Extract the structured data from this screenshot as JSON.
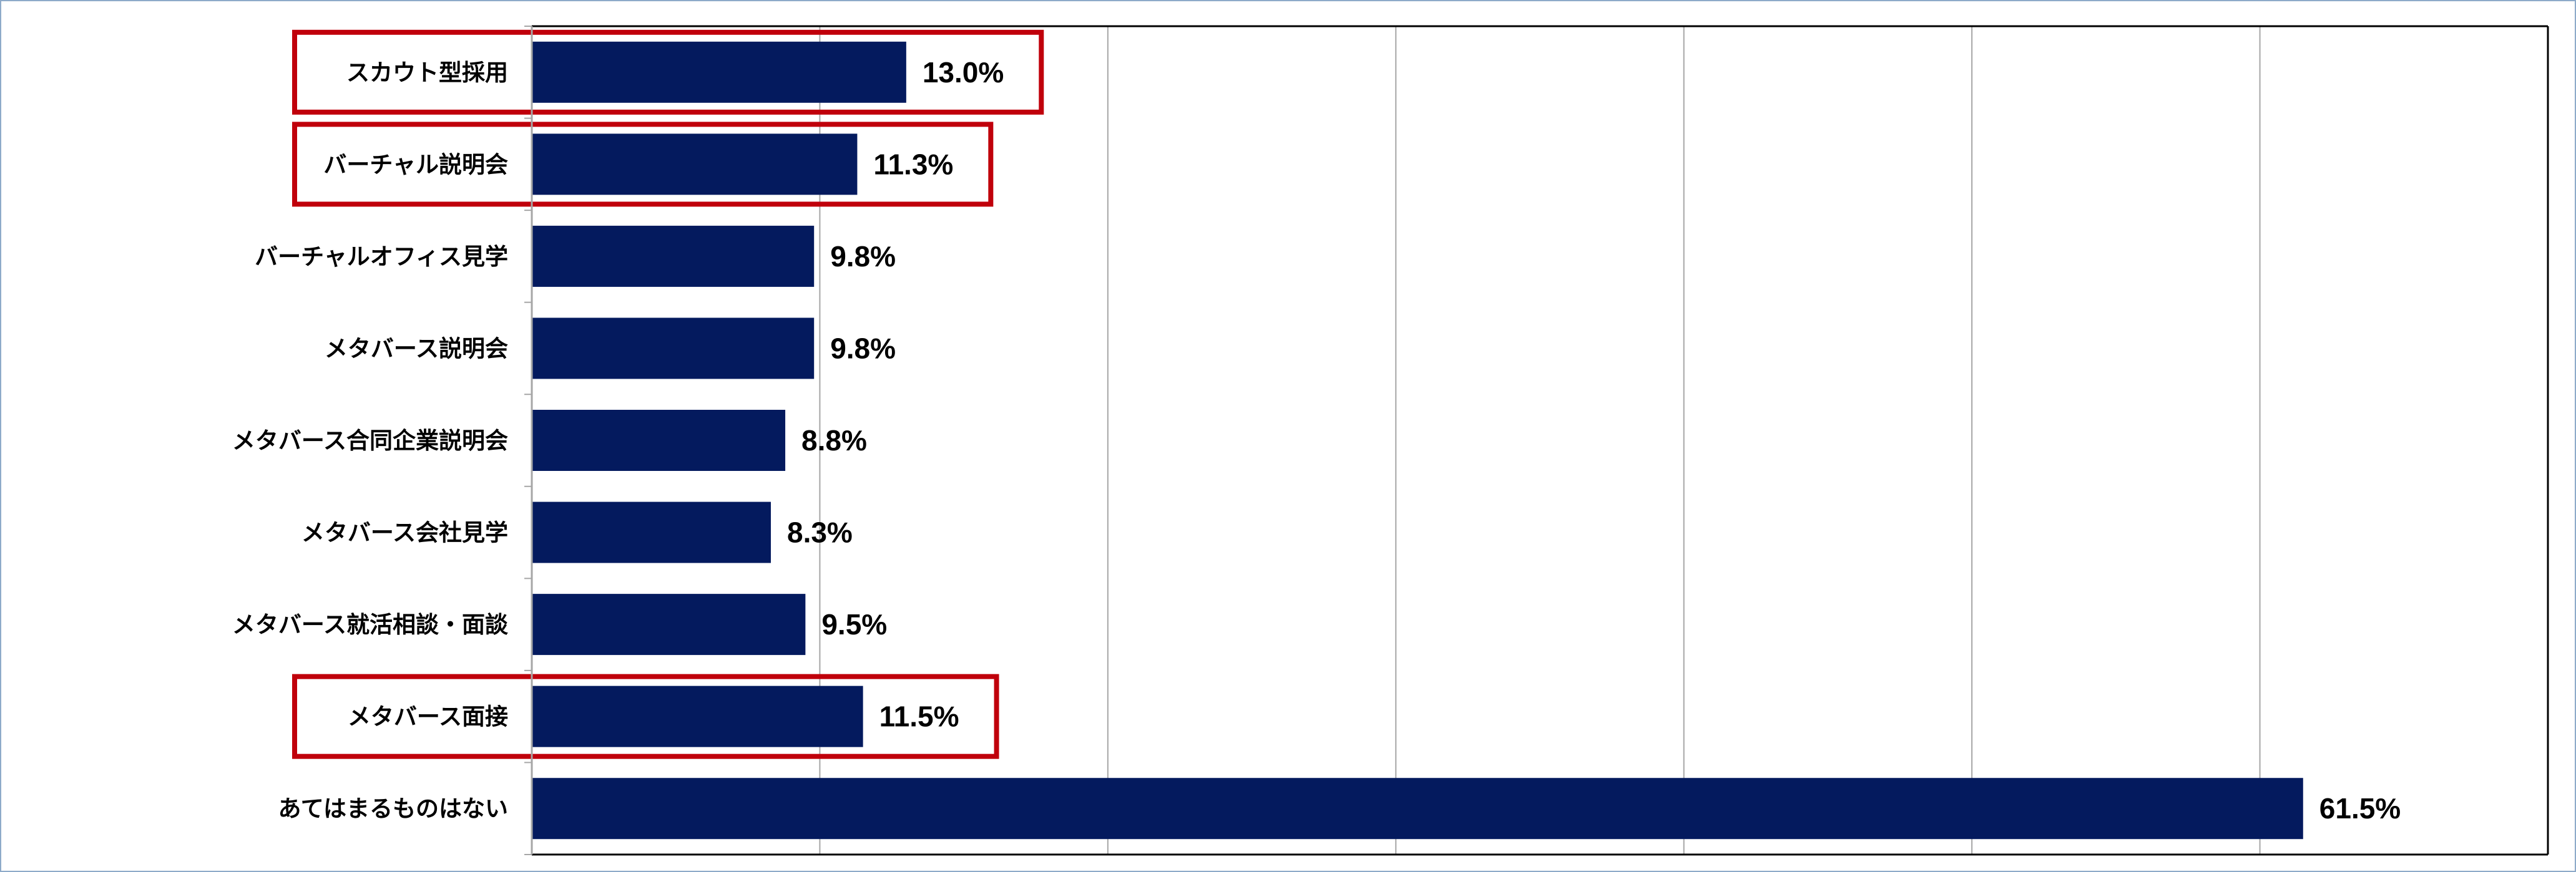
{
  "chart_data": {
    "type": "bar",
    "orientation": "horizontal",
    "categories": [
      "スカウト型採用",
      "バーチャル説明会",
      "バーチャルオフィス見学",
      "メタバース説明会",
      "メタバース合同企業説明会",
      "メタバース会社見学",
      "メタバース就活相談・面談",
      "メタバース面接",
      "あてはまるものはない"
    ],
    "values": [
      13.0,
      11.3,
      9.8,
      9.8,
      8.8,
      8.3,
      9.5,
      11.5,
      61.5
    ],
    "value_labels": [
      "13.0%",
      "11.3%",
      "9.8%",
      "9.8%",
      "8.8%",
      "8.3%",
      "9.5%",
      "11.5%",
      "61.5%"
    ],
    "highlighted_categories": [
      "スカウト型採用",
      "バーチャル説明会",
      "メタバース面接"
    ],
    "xlim": [
      0,
      70
    ],
    "x_gridlines": [
      10,
      20,
      30,
      40,
      50,
      60
    ],
    "grid": true,
    "legend": "none",
    "title": "",
    "xlabel": "",
    "ylabel": "",
    "colors": {
      "bar": "#041a5e",
      "highlight_box": "#c0000b",
      "gridline": "#a6a6a6",
      "axis": "#000000",
      "frame_border": "#8eaac9"
    }
  }
}
